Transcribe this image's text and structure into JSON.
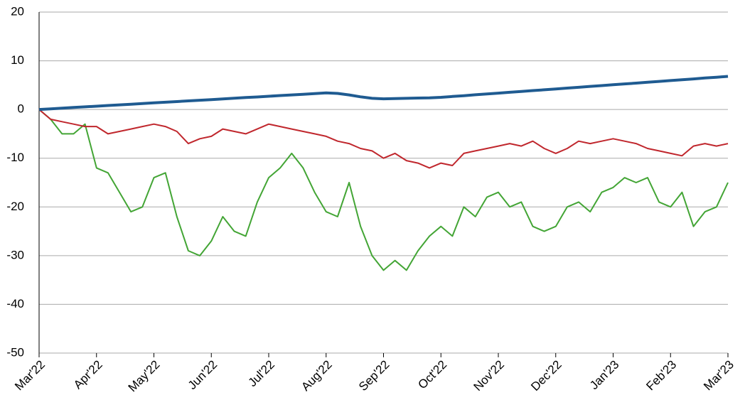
{
  "chart_data": {
    "type": "line",
    "categories": [
      "Mar'22",
      null,
      null,
      null,
      null,
      "Apr'22",
      null,
      null,
      null,
      null,
      "May'22",
      null,
      null,
      null,
      null,
      "Jun'22",
      null,
      null,
      null,
      null,
      "Jul'22",
      null,
      null,
      null,
      null,
      "Aug'22",
      null,
      null,
      null,
      null,
      "Sep'22",
      null,
      null,
      null,
      null,
      "Oct'22",
      null,
      null,
      null,
      null,
      "Nov'22",
      null,
      null,
      null,
      null,
      "Dec'22",
      null,
      null,
      null,
      null,
      "Jan'23",
      null,
      null,
      null,
      null,
      "Feb'23",
      null,
      null,
      null,
      null,
      "Mar'23"
    ],
    "series": [
      {
        "color": "#1f5b91",
        "values": [
          0,
          0.14,
          0.27,
          0.41,
          0.54,
          0.68,
          0.82,
          0.95,
          1.09,
          1.22,
          1.36,
          1.5,
          1.63,
          1.77,
          1.9,
          2.04,
          2.18,
          2.31,
          2.45,
          2.58,
          2.72,
          2.86,
          2.99,
          3.13,
          3.26,
          3.4,
          3.3,
          3.0,
          2.6,
          2.3,
          2.2,
          2.25,
          2.3,
          2.35,
          2.4,
          2.5,
          2.67,
          2.84,
          3.02,
          3.19,
          3.36,
          3.53,
          3.7,
          3.88,
          4.05,
          4.22,
          4.39,
          4.56,
          4.74,
          4.91,
          5.08,
          5.25,
          5.42,
          5.6,
          5.77,
          5.94,
          6.11,
          6.28,
          6.46,
          6.63,
          6.8
        ]
      },
      {
        "color": "#c0272d",
        "values": [
          0,
          -2,
          -2.5,
          -3,
          -3.5,
          -3.5,
          -5,
          -4.5,
          -4,
          -3.5,
          -3,
          -3.5,
          -4.5,
          -7,
          -6,
          -5.5,
          -4,
          -4.5,
          -5,
          -4,
          -3,
          -3.5,
          -4,
          -4.5,
          -5,
          -5.5,
          -6.5,
          -7,
          -8,
          -8.5,
          -10,
          -9,
          -10.5,
          -11,
          -12,
          -11,
          -11.5,
          -9,
          -8.5,
          -8,
          -7.5,
          -7,
          -7.5,
          -6.5,
          -8,
          -9,
          -8,
          -6.5,
          -7,
          -6.5,
          -6,
          -6.5,
          -7,
          -8,
          -8.5,
          -9,
          -9.5,
          -7.5,
          -7,
          -7.5,
          -7
        ]
      },
      {
        "color": "#43a535",
        "values": [
          0,
          -2,
          -5,
          -5,
          -3,
          -12,
          -13,
          -17,
          -21,
          -20,
          -14,
          -13,
          -22,
          -29,
          -30,
          -27,
          -22,
          -25,
          -26,
          -19,
          -14,
          -12,
          -9,
          -12,
          -17,
          -21,
          -22,
          -15,
          -24,
          -30,
          -33,
          -31,
          -33,
          -29,
          -26,
          -24,
          -26,
          -20,
          -22,
          -18,
          -17,
          -20,
          -19,
          -24,
          -25,
          -24,
          -20,
          -19,
          -21,
          -17,
          -16,
          -14,
          -15,
          -14,
          -19,
          -20,
          -17,
          -24,
          -21,
          -20,
          -15
        ]
      }
    ],
    "ylim": [
      -50,
      20
    ],
    "yticks": [
      20,
      10,
      0,
      -10,
      -20,
      -30,
      -40,
      -50
    ],
    "grid": true
  }
}
